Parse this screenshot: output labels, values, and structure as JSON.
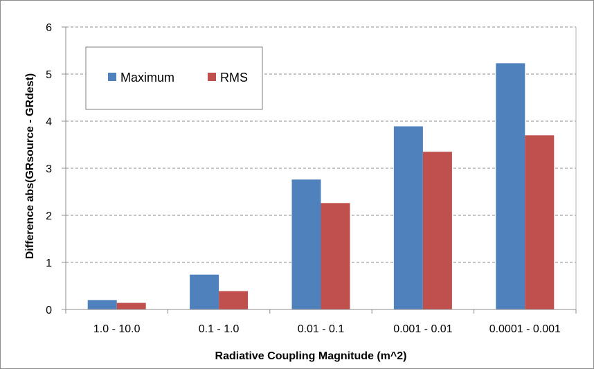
{
  "chart_data": {
    "type": "bar",
    "title": "",
    "xlabel": "Radiative Coupling Magnitude (m^2)",
    "ylabel": "Difference abs(GRsource - GRdest)",
    "categories": [
      "1.0 - 10.0",
      "0.1 - 1.0",
      "0.01 - 0.1",
      "0.001 - 0.01",
      "0.0001 - 0.001"
    ],
    "series": [
      {
        "name": "Maximum",
        "color": "#4f81bd",
        "values": [
          0.2,
          0.74,
          2.76,
          3.89,
          5.23
        ]
      },
      {
        "name": "RMS",
        "color": "#c0504d",
        "values": [
          0.14,
          0.39,
          2.26,
          3.35,
          3.7
        ]
      }
    ],
    "ylim": [
      0,
      6
    ],
    "yticks": [
      0,
      1,
      2,
      3,
      4,
      5,
      6
    ],
    "grid": true,
    "legend_position": "top-left"
  }
}
